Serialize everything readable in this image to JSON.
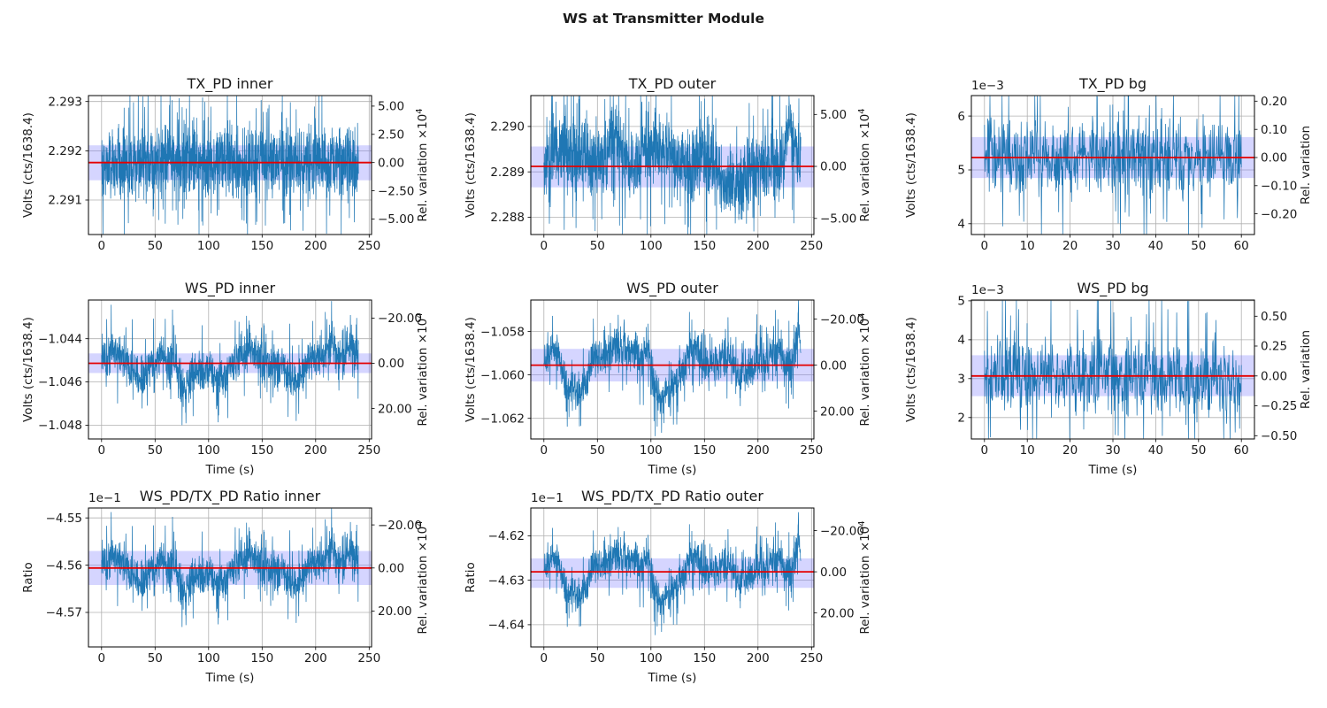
{
  "suptitle": "WS at Transmitter Module",
  "colors": {
    "background": "#ffffff",
    "signal": "#1f77b4",
    "mean_line": "#e50000",
    "band": "rgba(105,105,255,0.28)",
    "grid": "#b0b0b0",
    "spine": "#000000",
    "text": "#1a1a1a"
  },
  "chart_data": [
    {
      "id": "tx-pd-inner",
      "type": "line",
      "title": "TX_PD inner",
      "ylabel": "Volts (cts/1638.4)",
      "xlabel": "",
      "offset_text": "",
      "right_label": "Rel. variation ×10",
      "right_label_sup": "4",
      "grid": true,
      "col": 0,
      "row": 0,
      "xlim": [
        -12.2,
        252.2
      ],
      "xticks": [
        [
          0,
          "0"
        ],
        [
          50,
          "50"
        ],
        [
          100,
          "100"
        ],
        [
          150,
          "150"
        ],
        [
          200,
          "200"
        ],
        [
          250,
          "250"
        ]
      ],
      "ylim": [
        2.2903,
        2.29312
      ],
      "yticks": [
        [
          2.291,
          "2.291"
        ],
        [
          2.292,
          "2.292"
        ],
        [
          2.293,
          "2.293"
        ]
      ],
      "rticks": [
        [
          2.292906,
          "5.00"
        ],
        [
          2.292333,
          "2.50"
        ],
        [
          2.29176,
          "0.00"
        ],
        [
          2.291187,
          "−2.50"
        ],
        [
          2.290614,
          "−5.00"
        ]
      ],
      "mean": 2.29176,
      "band": [
        2.2914,
        2.29211
      ],
      "signal": {
        "n": 1400,
        "t_max": 240,
        "seed": 101,
        "noise": 0.00055,
        "spike_p": 0.1,
        "bumps": []
      }
    },
    {
      "id": "tx-pd-outer",
      "type": "line",
      "title": "TX_PD outer",
      "ylabel": "Volts (cts/1638.4)",
      "xlabel": "",
      "offset_text": "",
      "right_label": "Rel. variation ×10",
      "right_label_sup": "4",
      "grid": true,
      "col": 1,
      "row": 0,
      "xlim": [
        -12.2,
        252.2
      ],
      "xticks": [
        [
          0,
          "0"
        ],
        [
          50,
          "50"
        ],
        [
          100,
          "100"
        ],
        [
          150,
          "150"
        ],
        [
          200,
          "200"
        ],
        [
          250,
          "250"
        ]
      ],
      "ylim": [
        2.28762,
        2.29068
      ],
      "yticks": [
        [
          2.288,
          "2.288"
        ],
        [
          2.289,
          "2.289"
        ],
        [
          2.29,
          "2.290"
        ]
      ],
      "rticks": [
        [
          2.290265,
          "5.00"
        ],
        [
          2.28912,
          "0.00"
        ],
        [
          2.287975,
          "−5.00"
        ]
      ],
      "mean": 2.28912,
      "band": [
        2.28866,
        2.28956
      ],
      "signal": {
        "n": 1400,
        "t_max": 240,
        "seed": 202,
        "noise": 0.0006,
        "spike_p": 0.1,
        "bumps": [
          [
            18,
            8,
            0.0004
          ],
          [
            35,
            7,
            0.0003
          ],
          [
            65,
            9,
            0.0006
          ],
          [
            100,
            11,
            0.0005
          ],
          [
            115,
            6,
            0.0005
          ],
          [
            150,
            8,
            0.0003
          ],
          [
            178,
            12,
            -0.0005
          ],
          [
            230,
            6,
            0.0008
          ]
        ]
      }
    },
    {
      "id": "tx-pd-bg",
      "type": "line",
      "title": "TX_PD bg",
      "ylabel": "Volts (cts/1638.4)",
      "xlabel": "",
      "offset_text": "1e−3",
      "right_label": "Rel. variation",
      "right_label_sup": "",
      "grid": true,
      "col": 2,
      "row": 0,
      "xlim": [
        -3.05,
        63.05
      ],
      "xticks": [
        [
          0,
          "0"
        ],
        [
          10,
          "10"
        ],
        [
          20,
          "20"
        ],
        [
          30,
          "30"
        ],
        [
          40,
          "40"
        ],
        [
          50,
          "50"
        ],
        [
          60,
          "60"
        ]
      ],
      "ylim": [
        0.0038,
        0.00638
      ],
      "yticks": [
        [
          0.004,
          "4"
        ],
        [
          0.005,
          "5"
        ],
        [
          0.006,
          "6"
        ]
      ],
      "rticks": [
        [
          0.006276,
          "0.20"
        ],
        [
          0.005753,
          "0.10"
        ],
        [
          0.00523,
          "0.00"
        ],
        [
          0.004707,
          "−0.10"
        ],
        [
          0.004184,
          "−0.20"
        ]
      ],
      "mean": 0.00523,
      "band": [
        0.00485,
        0.00561
      ],
      "signal": {
        "n": 700,
        "t_max": 60,
        "seed": 303,
        "noise": 0.00055,
        "spike_p": 0.1,
        "bumps": []
      }
    },
    {
      "id": "ws-pd-inner",
      "type": "line",
      "title": "WS_PD inner",
      "ylabel": "Volts (cts/1638.4)",
      "xlabel": "Time (s)",
      "offset_text": "",
      "right_label": "Rel. variation ×10",
      "right_label_sup": "4",
      "grid": true,
      "col": 0,
      "row": 1,
      "xlim": [
        -12.2,
        252.2
      ],
      "xticks": [
        [
          0,
          "0"
        ],
        [
          50,
          "50"
        ],
        [
          100,
          "100"
        ],
        [
          150,
          "150"
        ],
        [
          200,
          "200"
        ],
        [
          250,
          "250"
        ]
      ],
      "ylim": [
        -1.04864,
        -1.04221
      ],
      "yticks": [
        [
          -1.044,
          "−1.044"
        ],
        [
          -1.046,
          "−1.046"
        ],
        [
          -1.048,
          "−1.048"
        ]
      ],
      "rticks": [
        [
          -1.04305,
          "−20.00"
        ],
        [
          -1.04514,
          "0.00"
        ],
        [
          -1.04723,
          "20.00"
        ]
      ],
      "mean": -1.04514,
      "band": [
        -1.04559,
        -1.04468
      ],
      "signal": {
        "n": 1300,
        "t_max": 240,
        "seed": 404,
        "noise": 0.0007,
        "spike_p": 0.1,
        "bumps": [
          [
            12,
            10,
            0.0005
          ],
          [
            35,
            12,
            -0.0006
          ],
          [
            55,
            6,
            0.0003
          ],
          [
            78,
            7,
            -0.0011
          ],
          [
            95,
            8,
            -0.0004
          ],
          [
            112,
            10,
            -0.0007
          ],
          [
            140,
            12,
            0.0005
          ],
          [
            160,
            6,
            -0.0003
          ],
          [
            180,
            8,
            -0.0008
          ],
          [
            205,
            10,
            0.0004
          ],
          [
            215,
            4,
            0.0007
          ],
          [
            232,
            6,
            0.0006
          ]
        ]
      }
    },
    {
      "id": "ws-pd-outer",
      "type": "line",
      "title": "WS_PD outer",
      "ylabel": "Volts (cts/1638.4)",
      "xlabel": "Time (s)",
      "offset_text": "",
      "right_label": "Rel. variation ×10",
      "right_label_sup": "4",
      "grid": true,
      "col": 1,
      "row": 1,
      "xlim": [
        -12.2,
        252.2
      ],
      "xticks": [
        [
          0,
          "0"
        ],
        [
          50,
          "50"
        ],
        [
          100,
          "100"
        ],
        [
          150,
          "150"
        ],
        [
          200,
          "200"
        ],
        [
          250,
          "250"
        ]
      ],
      "ylim": [
        -1.06295,
        -1.05655
      ],
      "yticks": [
        [
          -1.058,
          "−1.058"
        ],
        [
          -1.06,
          "−1.060"
        ],
        [
          -1.062,
          "−1.062"
        ]
      ],
      "rticks": [
        [
          -1.057431,
          "−20.00"
        ],
        [
          -1.05955,
          "0.00"
        ],
        [
          -1.061669,
          "20.00"
        ]
      ],
      "mean": -1.05955,
      "band": [
        -1.0603,
        -1.0588
      ],
      "signal": {
        "n": 1300,
        "t_max": 240,
        "seed": 505,
        "noise": 0.0007,
        "spike_p": 0.1,
        "bumps": [
          [
            10,
            8,
            0.0006
          ],
          [
            22,
            5,
            -0.0008
          ],
          [
            33,
            9,
            -0.0013
          ],
          [
            48,
            6,
            0.0004
          ],
          [
            68,
            10,
            0.0009
          ],
          [
            85,
            8,
            0.0006
          ],
          [
            97,
            4,
            0.0009
          ],
          [
            110,
            11,
            -0.0015
          ],
          [
            125,
            5,
            -0.0006
          ],
          [
            140,
            7,
            0.0007
          ],
          [
            170,
            7,
            0.0004
          ],
          [
            185,
            6,
            -0.0004
          ],
          [
            218,
            8,
            0.0005
          ],
          [
            237,
            3,
            0.0016
          ]
        ]
      }
    },
    {
      "id": "ws-pd-bg",
      "type": "line",
      "title": "WS_PD bg",
      "ylabel": "Volts (cts/1638.4)",
      "xlabel": "Time (s)",
      "offset_text": "1e−3",
      "right_label": "Rel. variation",
      "right_label_sup": "",
      "grid": true,
      "col": 2,
      "row": 1,
      "xlim": [
        -3.05,
        63.05
      ],
      "xticks": [
        [
          0,
          "0"
        ],
        [
          10,
          "10"
        ],
        [
          20,
          "20"
        ],
        [
          30,
          "30"
        ],
        [
          40,
          "40"
        ],
        [
          50,
          "50"
        ],
        [
          60,
          "60"
        ]
      ],
      "ylim": [
        0.00145,
        0.00502
      ],
      "yticks": [
        [
          0.002,
          "2"
        ],
        [
          0.003,
          "3"
        ],
        [
          0.004,
          "4"
        ],
        [
          0.005,
          "5"
        ]
      ],
      "rticks": [
        [
          0.004605,
          "0.50"
        ],
        [
          0.0038375,
          "0.25"
        ],
        [
          0.00307,
          "0.00"
        ],
        [
          0.0023025,
          "−0.25"
        ],
        [
          0.001535,
          "−0.50"
        ]
      ],
      "mean": 0.00307,
      "band": [
        0.00255,
        0.0036
      ],
      "signal": {
        "n": 700,
        "t_max": 60,
        "seed": 606,
        "noise": 0.00075,
        "spike_p": 0.1,
        "bumps": []
      }
    },
    {
      "id": "ratio-inner",
      "type": "line",
      "title": "WS_PD/TX_PD Ratio inner",
      "ylabel": "Ratio",
      "xlabel": "Time (s)",
      "offset_text": "1e−1",
      "right_label": "Rel. variation ×10",
      "right_label_sup": "4",
      "grid": true,
      "col": 0,
      "row": 2,
      "xlim": [
        -12.2,
        252.2
      ],
      "xticks": [
        [
          0,
          "0"
        ],
        [
          50,
          "50"
        ],
        [
          100,
          "100"
        ],
        [
          150,
          "150"
        ],
        [
          200,
          "200"
        ],
        [
          250,
          "250"
        ]
      ],
      "ylim": [
        -0.45773,
        -0.45479
      ],
      "yticks": [
        [
          -0.455,
          "−4.55"
        ],
        [
          -0.456,
          "−4.56"
        ],
        [
          -0.457,
          "−4.57"
        ]
      ],
      "rticks": [
        [
          -0.455148,
          "−20.00"
        ],
        [
          -0.45606,
          "0.00"
        ],
        [
          -0.456972,
          "20.00"
        ]
      ],
      "mean": -0.45606,
      "band": [
        -0.45642,
        -0.4557
      ],
      "signal": {
        "n": 1300,
        "t_max": 240,
        "seed": 404,
        "noise": 0.000305,
        "spike_p": 0.1,
        "bumps": [
          [
            12,
            10,
            0.00022
          ],
          [
            35,
            12,
            -0.00026
          ],
          [
            55,
            6,
            0.00013
          ],
          [
            78,
            7,
            -0.00048
          ],
          [
            95,
            8,
            -0.00017
          ],
          [
            112,
            10,
            -0.00031
          ],
          [
            140,
            12,
            0.00022
          ],
          [
            160,
            6,
            -0.00013
          ],
          [
            180,
            8,
            -0.00035
          ],
          [
            205,
            10,
            0.00017
          ],
          [
            215,
            4,
            0.00031
          ],
          [
            232,
            6,
            0.00026
          ]
        ]
      }
    },
    {
      "id": "ratio-outer",
      "type": "line",
      "title": "WS_PD/TX_PD Ratio outer",
      "ylabel": "Ratio",
      "xlabel": "Time (s)",
      "offset_text": "1e−1",
      "right_label": "Rel. variation ×10",
      "right_label_sup": "4",
      "grid": true,
      "col": 1,
      "row": 2,
      "xlim": [
        -12.2,
        252.2
      ],
      "xticks": [
        [
          0,
          "0"
        ],
        [
          50,
          "50"
        ],
        [
          100,
          "100"
        ],
        [
          150,
          "150"
        ],
        [
          200,
          "200"
        ],
        [
          250,
          "250"
        ]
      ],
      "ylim": [
        -0.4645,
        -0.461375
      ],
      "yticks": [
        [
          -0.462,
          "−4.62"
        ],
        [
          -0.463,
          "−4.63"
        ],
        [
          -0.464,
          "−4.64"
        ]
      ],
      "rticks": [
        [
          -0.461884,
          "−20.00"
        ],
        [
          -0.46281,
          "0.00"
        ],
        [
          -0.463736,
          "20.00"
        ]
      ],
      "mean": -0.46281,
      "band": [
        -0.46317,
        -0.46251
      ],
      "signal": {
        "n": 1300,
        "t_max": 240,
        "seed": 505,
        "noise": 0.000305,
        "spike_p": 0.1,
        "bumps": [
          [
            10,
            8,
            0.00026
          ],
          [
            22,
            5,
            -0.00035
          ],
          [
            33,
            9,
            -0.00057
          ],
          [
            48,
            6,
            0.00017
          ],
          [
            68,
            10,
            0.00039
          ],
          [
            85,
            8,
            0.00026
          ],
          [
            97,
            4,
            0.00039
          ],
          [
            110,
            11,
            -0.00065
          ],
          [
            125,
            5,
            -0.00026
          ],
          [
            140,
            7,
            0.00031
          ],
          [
            170,
            7,
            0.00017
          ],
          [
            185,
            6,
            -0.00017
          ],
          [
            218,
            8,
            0.00022
          ],
          [
            237,
            3,
            0.0007
          ]
        ]
      }
    }
  ]
}
